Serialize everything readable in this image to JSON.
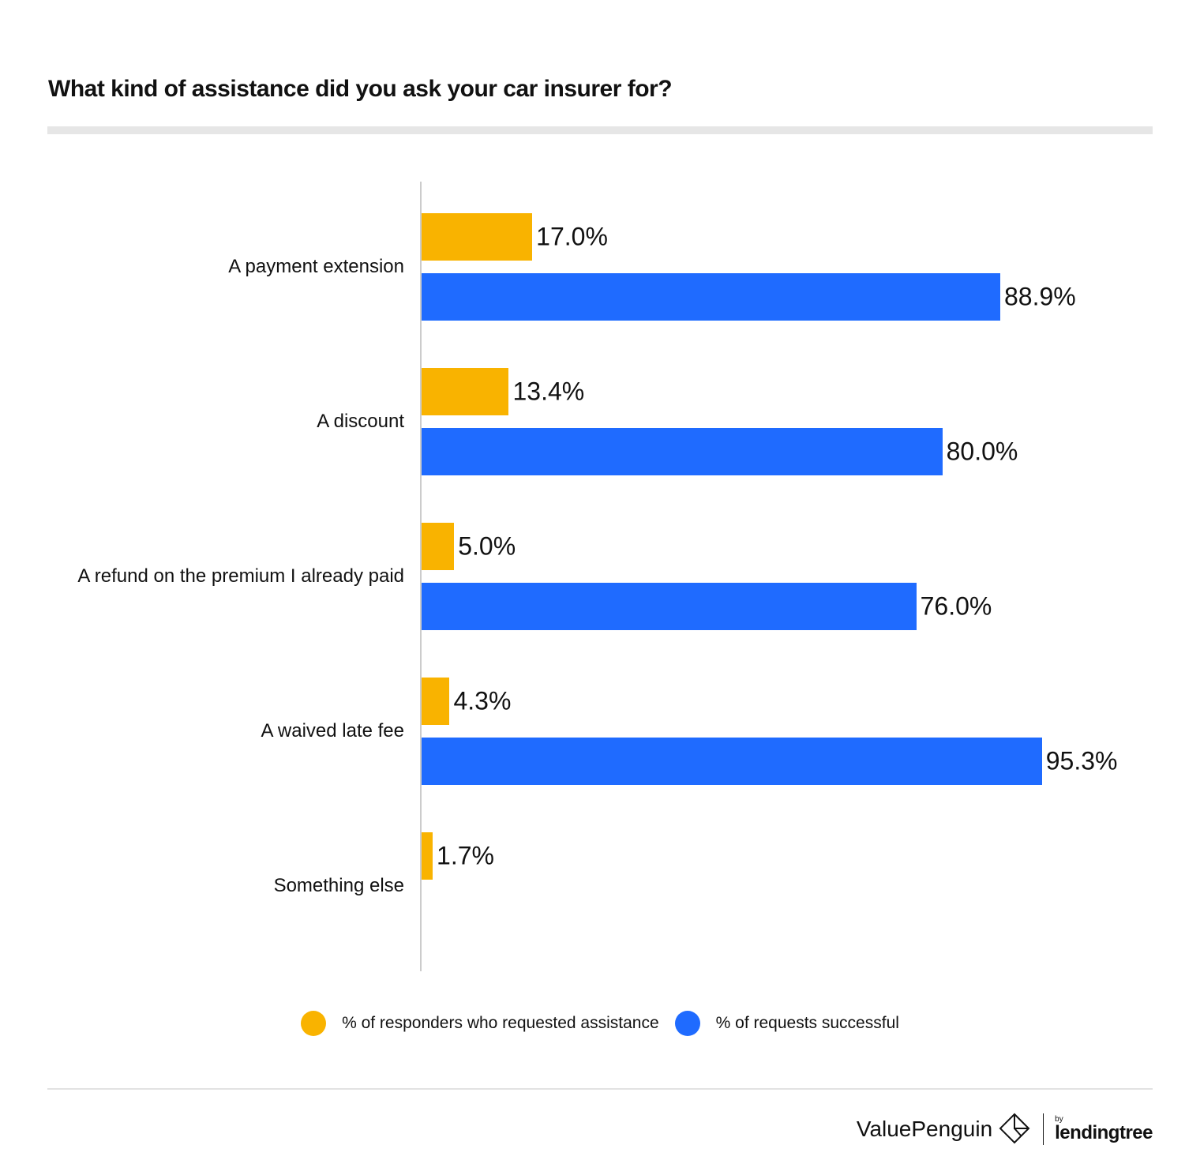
{
  "chart_data": {
    "type": "bar",
    "orientation": "horizontal",
    "title": "What kind of assistance did you ask your car insurer for?",
    "categories": [
      "A payment extension",
      "A discount",
      "A refund on the premium I already paid",
      "A waived late fee",
      "Something else"
    ],
    "series": [
      {
        "name": "% of responders who requested assistance",
        "color": "#F9B300",
        "values": [
          17.0,
          13.4,
          5.0,
          4.3,
          1.7
        ],
        "labels": [
          "17.0%",
          "13.4%",
          "5.0%",
          "4.3%",
          "1.7%"
        ]
      },
      {
        "name": "% of requests successful",
        "color": "#1F6BFF",
        "values": [
          88.9,
          80.0,
          76.0,
          95.3,
          null
        ],
        "labels": [
          "88.9%",
          "80.0%",
          "76.0%",
          "95.3%",
          null
        ]
      }
    ],
    "xlim": [
      0,
      100
    ],
    "grid": false,
    "legend": "bottom"
  },
  "branding": {
    "logo_text": "ValuePenguin",
    "by": "by",
    "partner": "lendingtree"
  }
}
